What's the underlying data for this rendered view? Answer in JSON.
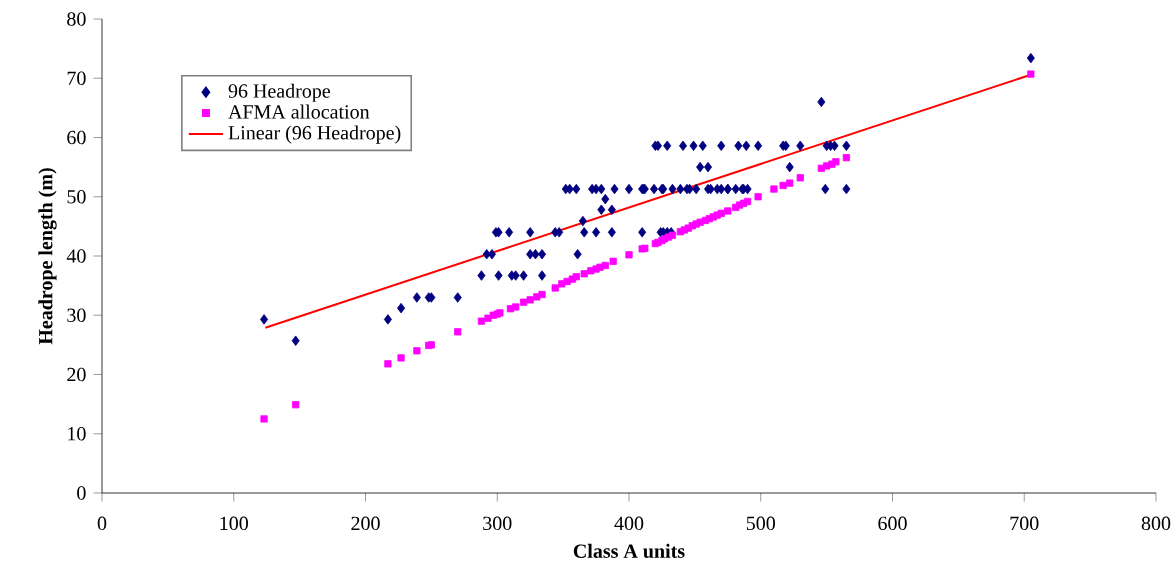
{
  "chart_data": {
    "type": "scatter",
    "xlabel": "Class A units",
    "ylabel": "Headrope length (m)",
    "xlim": [
      0,
      800
    ],
    "ylim": [
      0,
      80
    ],
    "xticks": [
      0,
      100,
      200,
      300,
      400,
      500,
      600,
      700,
      800
    ],
    "yticks": [
      0,
      10,
      20,
      30,
      40,
      50,
      60,
      70,
      80
    ],
    "grid": false,
    "legend": "top left",
    "series": [
      {
        "name": "96 Headrope",
        "color": "#000080",
        "marker": "diamond",
        "x": [
          123,
          147,
          217,
          227,
          239,
          248,
          250,
          270,
          288,
          292,
          296,
          299,
          301,
          309,
          301,
          311,
          314,
          320,
          325,
          325,
          329,
          334,
          334,
          344,
          347,
          352,
          355,
          360,
          361,
          365,
          366,
          372,
          375,
          375,
          379,
          379,
          382,
          387,
          387,
          389,
          400,
          410,
          410,
          411,
          412,
          419,
          420,
          422,
          424,
          425,
          426,
          426,
          429,
          429,
          432,
          433,
          439,
          441,
          444,
          446,
          449,
          451,
          454,
          456,
          460,
          460,
          462,
          467,
          470,
          470,
          475,
          475,
          481,
          483,
          486,
          487,
          489,
          490,
          498,
          517,
          519,
          522,
          530,
          546,
          549,
          550,
          553,
          556,
          565,
          565,
          705
        ],
        "values": [
          29.3,
          25.7,
          29.3,
          31.2,
          33.0,
          33.0,
          33.0,
          33.0,
          36.7,
          40.3,
          40.3,
          44.0,
          44.0,
          44.0,
          36.7,
          36.7,
          36.7,
          36.7,
          44.0,
          40.3,
          40.3,
          40.3,
          36.7,
          44.0,
          44.0,
          51.3,
          51.3,
          51.3,
          40.3,
          45.9,
          44.0,
          51.3,
          51.3,
          44.0,
          47.8,
          51.3,
          49.6,
          44.0,
          47.8,
          51.3,
          51.3,
          51.3,
          44.0,
          51.3,
          51.3,
          51.3,
          58.6,
          58.6,
          44.0,
          51.3,
          44.0,
          51.3,
          58.6,
          44.0,
          44.0,
          51.3,
          51.3,
          58.6,
          51.3,
          51.3,
          58.6,
          51.3,
          55.0,
          58.6,
          55.0,
          51.3,
          51.3,
          51.3,
          58.6,
          51.3,
          51.3,
          51.3,
          51.3,
          58.6,
          51.3,
          51.3,
          58.6,
          51.3,
          58.6,
          58.6,
          58.6,
          55.0,
          58.6,
          66.0,
          51.3,
          58.6,
          58.6,
          58.6,
          58.6,
          51.3,
          73.4
        ]
      },
      {
        "name": "AFMA allocation",
        "color": "#ff00ff",
        "marker": "square",
        "x": [
          123,
          147,
          217,
          227,
          239,
          248,
          250,
          270,
          288,
          293,
          297,
          300,
          302,
          310,
          314,
          320,
          325,
          330,
          334,
          344,
          349,
          353,
          357,
          360,
          366,
          371,
          375,
          378,
          382,
          388,
          400,
          410,
          412,
          420,
          422,
          425,
          427,
          430,
          433,
          439,
          442,
          445,
          448,
          451,
          454,
          458,
          461,
          464,
          467,
          470,
          475,
          481,
          484,
          487,
          490,
          498,
          510,
          517,
          522,
          530,
          546,
          550,
          554,
          557,
          565,
          705
        ],
        "values": [
          12.5,
          14.9,
          21.8,
          22.8,
          24.0,
          24.9,
          25.0,
          27.2,
          29.0,
          29.5,
          30.0,
          30.2,
          30.4,
          31.1,
          31.4,
          32.2,
          32.6,
          33.1,
          33.5,
          34.6,
          35.3,
          35.7,
          36.1,
          36.5,
          37.0,
          37.5,
          37.8,
          38.1,
          38.4,
          39.1,
          40.2,
          41.2,
          41.3,
          42.1,
          42.3,
          42.6,
          42.9,
          43.2,
          43.5,
          44.1,
          44.4,
          44.7,
          45.1,
          45.4,
          45.7,
          46.0,
          46.3,
          46.6,
          46.9,
          47.2,
          47.6,
          48.2,
          48.6,
          48.9,
          49.2,
          50.0,
          51.3,
          51.9,
          52.3,
          53.2,
          54.8,
          55.2,
          55.5,
          55.9,
          56.6,
          70.7
        ]
      },
      {
        "name": "Linear (96 Headrope)",
        "type": "line",
        "color": "#ff0000",
        "marker": "none",
        "x": [
          124,
          705
        ],
        "values": [
          27.9,
          70.6
        ]
      }
    ]
  }
}
